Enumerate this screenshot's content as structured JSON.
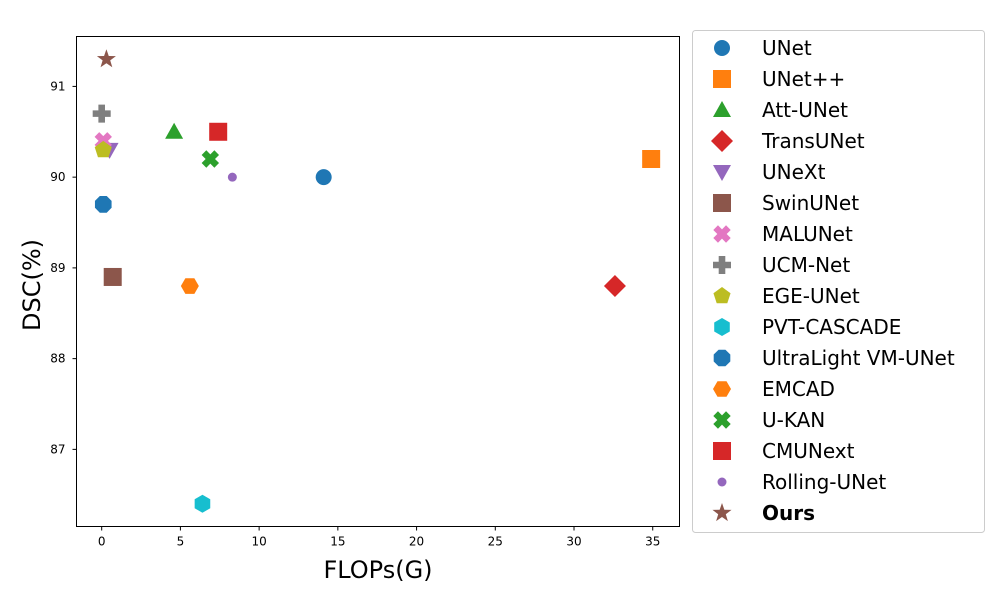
{
  "chart_data": {
    "type": "scatter",
    "xlabel": "FLOPs(G)",
    "ylabel": "DSC(%)",
    "xlim": [
      -1.6,
      36.7
    ],
    "ylim": [
      86.15,
      91.55
    ],
    "xticks": [
      0,
      5,
      10,
      15,
      20,
      25,
      30,
      35
    ],
    "yticks": [
      87,
      88,
      89,
      90,
      91
    ],
    "grid": false,
    "legend_position": "outside-right",
    "series": [
      {
        "name": "UNet",
        "marker": "circle",
        "color": "#1f77b4",
        "x": 14.1,
        "y": 90.0
      },
      {
        "name": "UNet++",
        "marker": "square",
        "color": "#ff7f0e",
        "x": 34.9,
        "y": 90.2
      },
      {
        "name": "Att-UNet",
        "marker": "triangle-up",
        "color": "#2ca02c",
        "x": 4.6,
        "y": 90.5
      },
      {
        "name": "TransUNet",
        "marker": "diamond",
        "color": "#d62728",
        "x": 32.6,
        "y": 88.8
      },
      {
        "name": "UNeXt",
        "marker": "triangle-down",
        "color": "#9467bd",
        "x": 0.5,
        "y": 90.3
      },
      {
        "name": "SwinUNet",
        "marker": "square",
        "color": "#8c564b",
        "x": 0.7,
        "y": 88.9
      },
      {
        "name": "MALUNet",
        "marker": "x-filled",
        "color": "#e377c2",
        "x": 0.1,
        "y": 90.4
      },
      {
        "name": "UCM-Net",
        "marker": "plus-filled",
        "color": "#7f7f7f",
        "x": 0.0,
        "y": 90.7
      },
      {
        "name": "EGE-UNet",
        "marker": "pentagon",
        "color": "#bcbd22",
        "x": 0.1,
        "y": 90.3
      },
      {
        "name": "PVT-CASCADE",
        "marker": "hexagon",
        "color": "#17becf",
        "x": 6.4,
        "y": 86.4
      },
      {
        "name": "UltraLight VM-UNet",
        "marker": "octagon",
        "color": "#1f77b4",
        "x": 0.1,
        "y": 89.7
      },
      {
        "name": "EMCAD",
        "marker": "hexagon-flat",
        "color": "#ff7f0e",
        "x": 5.6,
        "y": 88.8
      },
      {
        "name": "U-KAN",
        "marker": "x-filled",
        "color": "#2ca02c",
        "x": 6.9,
        "y": 90.2
      },
      {
        "name": "CMUNext",
        "marker": "square",
        "color": "#d62728",
        "x": 7.4,
        "y": 90.5
      },
      {
        "name": "Rolling-UNet",
        "marker": "small-circle",
        "color": "#9467bd",
        "x": 8.3,
        "y": 90.0
      },
      {
        "name": "Ours",
        "marker": "star",
        "color": "#8c564b",
        "x": 0.3,
        "y": 91.3,
        "bold": true
      }
    ]
  }
}
